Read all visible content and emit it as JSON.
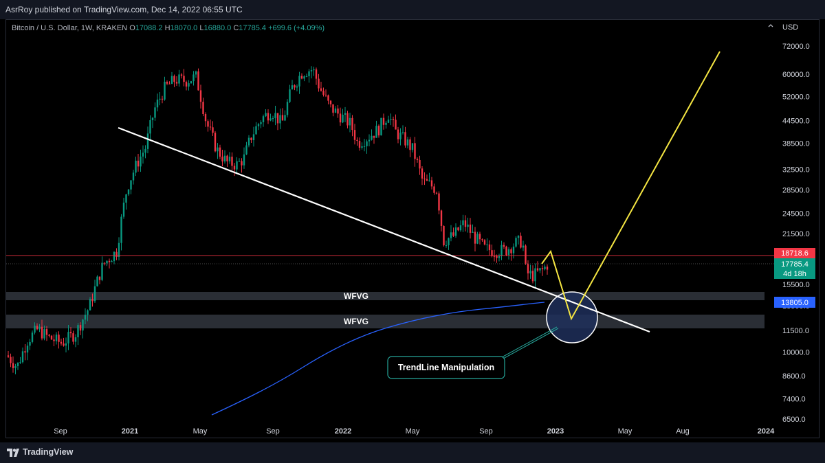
{
  "header": {
    "published_text": "AsrRoy published on TradingView.com, Dec 14, 2022 06:55 UTC"
  },
  "legend": {
    "symbol": "Bitcoin / U.S. Dollar, 1W, KRAKEN",
    "o_label": "O",
    "o_value": "17088.2",
    "h_label": "H",
    "h_value": "18070.0",
    "l_label": "L",
    "l_value": "16880.0",
    "c_label": "C",
    "c_value": "17785.4",
    "change": "+699.6 (+4.09%)"
  },
  "currency": "USD",
  "footer": {
    "brand": "TradingView"
  },
  "chart_data": {
    "type": "candlestick",
    "y_scale": "log",
    "y_ticks": [
      "72000.0",
      "60000.0",
      "52000.0",
      "44500.0",
      "38500.0",
      "32500.0",
      "28500.0",
      "24500.0",
      "21500.0",
      "15500.0",
      "13500.0",
      "11500.0",
      "10000.0",
      "8600.0",
      "7400.0",
      "6500.0"
    ],
    "x_ticks": [
      {
        "label": "Sep",
        "bold": false
      },
      {
        "label": "2021",
        "bold": true
      },
      {
        "label": "May",
        "bold": false
      },
      {
        "label": "Sep",
        "bold": false
      },
      {
        "label": "2022",
        "bold": true
      },
      {
        "label": "May",
        "bold": false
      },
      {
        "label": "Sep",
        "bold": false
      },
      {
        "label": "2023",
        "bold": true
      },
      {
        "label": "May",
        "bold": false
      },
      {
        "label": "Aug",
        "bold": false
      },
      {
        "label": "2024",
        "bold": true
      }
    ],
    "price_labels": [
      {
        "value": "18718.6",
        "color": "#f23645"
      },
      {
        "value": "17785.4",
        "sub": "4d 18h",
        "color": "#089981"
      },
      {
        "value": "13805.0",
        "color": "#2962ff"
      }
    ],
    "zones": [
      {
        "label": "WFVG"
      },
      {
        "label": "WFVG"
      }
    ],
    "annotation": "TrendLine Manipulation",
    "colors": {
      "up": "#089981",
      "down": "#f23645",
      "trendline": "#ffffff",
      "projection": "#f5e642",
      "ma": "#2962ff",
      "circle": "#1e2f5a"
    }
  }
}
